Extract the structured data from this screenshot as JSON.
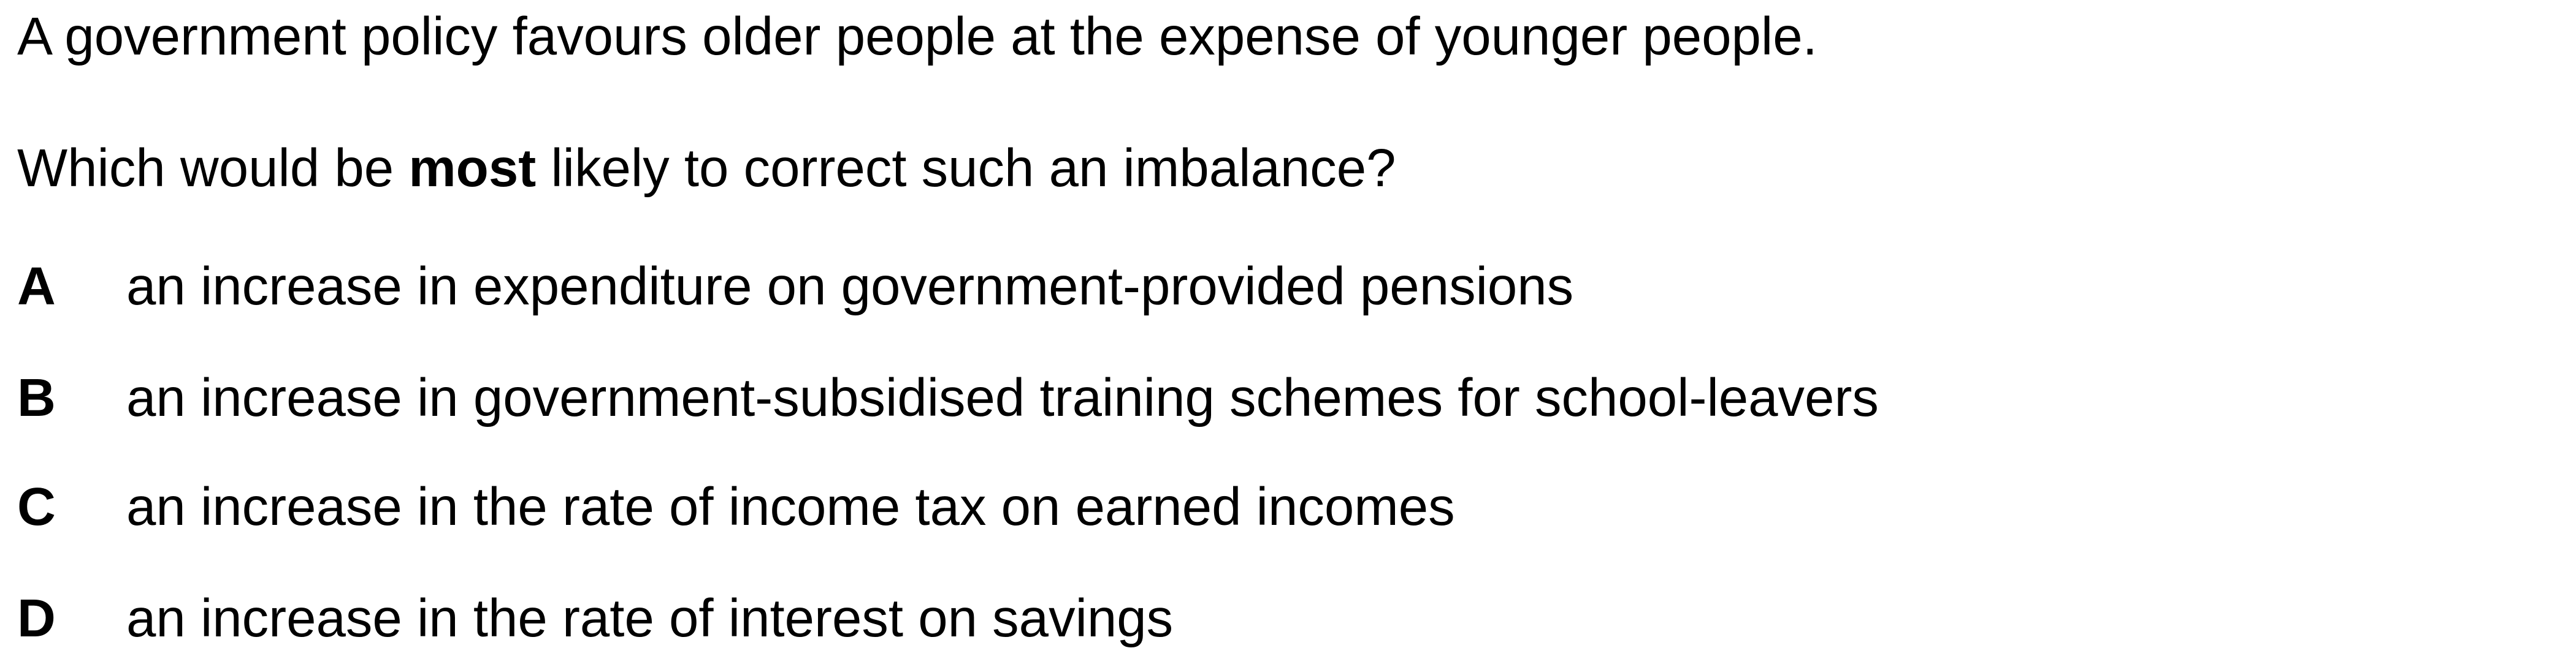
{
  "stem": "A government policy favours older people at the expense of younger people.",
  "question": {
    "before": "Which would be ",
    "emphasis": "most",
    "after": " likely to correct such an imbalance?"
  },
  "options": [
    {
      "letter": "A",
      "text": "an increase in expenditure on government-provided pensions"
    },
    {
      "letter": "B",
      "text": "an increase in government-subsidised training schemes for school-leavers"
    },
    {
      "letter": "C",
      "text": "an increase in the rate of income tax on earned incomes"
    },
    {
      "letter": "D",
      "text": "an increase in the rate of interest on savings"
    }
  ]
}
